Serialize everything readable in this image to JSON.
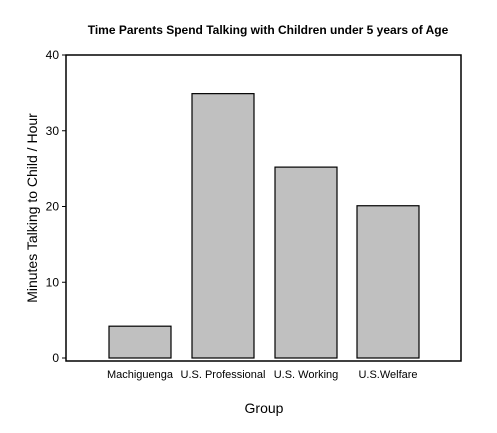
{
  "chart_data": {
    "type": "bar",
    "title": "Time Parents Spend Talking with Children under 5 years of Age",
    "xlabel": "Group",
    "ylabel": "Minutes Talking to Child / Hour",
    "categories": [
      "Machiguenga",
      "U.S. Professional",
      "U.S. Working",
      "U.S.Welfare"
    ],
    "values": [
      4.2,
      34.9,
      25.2,
      20.1
    ],
    "ylim": [
      0,
      40
    ],
    "yticks": [
      0,
      10,
      20,
      30,
      40
    ],
    "grid": false,
    "legend": "none",
    "colors": {
      "bar_fill": "#c0c0c0",
      "bar_stroke": "#000000",
      "axis": "#000000",
      "background": "#ffffff"
    }
  }
}
